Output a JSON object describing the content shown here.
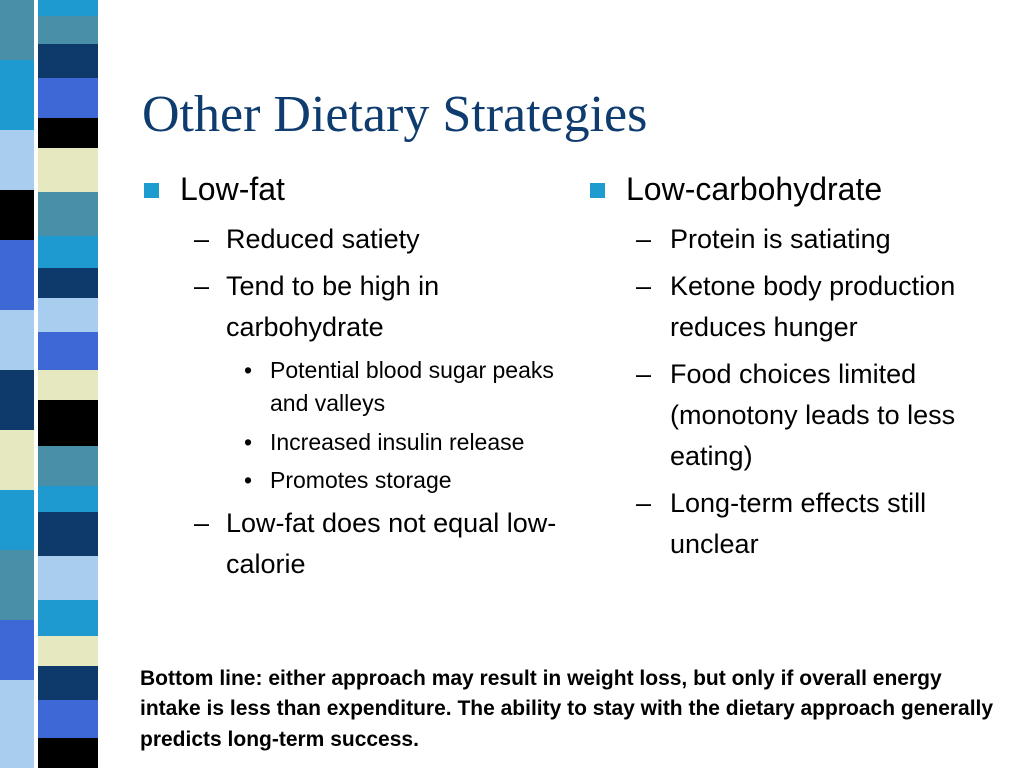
{
  "slide": {
    "title": "Other Dietary Strategies",
    "left": {
      "heading": "Low-fat",
      "items": [
        {
          "text": "Reduced satiety"
        },
        {
          "text": "Tend to be high in carbohydrate",
          "subitems": [
            "Potential blood sugar peaks and valleys",
            "Increased insulin release",
            "Promotes storage"
          ]
        },
        {
          "text": "Low-fat does not equal low-calorie"
        }
      ]
    },
    "right": {
      "heading": "Low-carbohydrate",
      "items": [
        {
          "text": "Protein is satiating"
        },
        {
          "text": "Ketone body production reduces hunger"
        },
        {
          "text": "Food choices limited (monotony leads to less eating)"
        },
        {
          "text": "Long-term effects still unclear"
        }
      ]
    },
    "bottom_line": "Bottom line: either approach may result in weight loss, but only if overall energy intake is less than expenditure. The ability to stay with the dietary approach generally predicts long-term success."
  },
  "colors": {
    "title": "#0f3c6e",
    "bullet": "#1e9ccf",
    "stripe_palette": [
      "#0d3a6b",
      "#1f9ad0",
      "#3e68d6",
      "#e6e8c0",
      "#4a8fa8",
      "#000000",
      "#a9cdef"
    ]
  }
}
